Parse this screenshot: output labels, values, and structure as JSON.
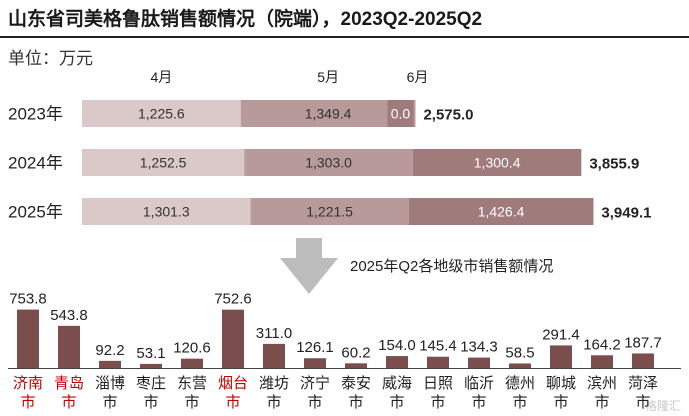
{
  "title": "山东省司美格鲁肽销售额情况（院端），2023Q2-2025Q2",
  "unit_label": "单位：万元",
  "watermark": "格隆汇",
  "colors": {
    "april": "#dbc9c9",
    "may": "#b89a9a",
    "june": "#a07b7b",
    "highlight": "#c00000",
    "dark_bar": "#7b4d4d"
  },
  "chart_data": [
    {
      "type": "bar",
      "orientation": "horizontal",
      "stacked": true,
      "categories": [
        "2023年",
        "2024年",
        "2025年"
      ],
      "series": [
        {
          "name": "4月",
          "values": [
            1225.6,
            1252.5,
            1301.3
          ]
        },
        {
          "name": "5月",
          "values": [
            1349.4,
            1303.0,
            1221.5
          ]
        },
        {
          "name": "6月",
          "values": [
            0.0,
            1300.4,
            1426.4
          ]
        }
      ],
      "value_labels": [
        [
          "1,225.6",
          "1,349.4",
          "0.0"
        ],
        [
          "1,252.5",
          "1,303.0",
          "1,300.4"
        ],
        [
          "1,301.3",
          "1,221.5",
          "1,426.4"
        ]
      ],
      "totals": [
        2575.0,
        3855.9,
        3949.1
      ],
      "total_labels": [
        "2,575.0",
        "3,855.9",
        "3,949.1"
      ],
      "legend_placement": "top"
    },
    {
      "type": "bar",
      "title": "2025年Q2各地级市销售额情况",
      "categories": [
        "济南市",
        "青岛市",
        "淄博市",
        "枣庄市",
        "东营市",
        "烟台市",
        "潍坊市",
        "济宁市",
        "泰安市",
        "威海市",
        "日照市",
        "临沂市",
        "德州市",
        "聊城市",
        "滨州市",
        "菏泽市"
      ],
      "labels_top": [
        "济南",
        "青岛",
        "淄博",
        "枣庄",
        "东营",
        "烟台",
        "潍坊",
        "济宁",
        "泰安",
        "威海",
        "日照",
        "临沂",
        "德州",
        "聊城",
        "滨州",
        "菏泽"
      ],
      "label_suffix": "市",
      "values": [
        753.8,
        543.8,
        92.2,
        53.1,
        120.6,
        752.6,
        311.0,
        126.1,
        60.2,
        154.0,
        145.4,
        134.3,
        58.5,
        291.4,
        164.2,
        187.7
      ],
      "value_labels": [
        "753.8",
        "543.8",
        "92.2",
        "53.1",
        "120.6",
        "752.6",
        "311.0",
        "126.1",
        "60.2",
        "154.0",
        "145.4",
        "134.3",
        "58.5",
        "291.4",
        "164.2",
        "187.7"
      ],
      "highlighted": [
        "济南市",
        "青岛市",
        "烟台市"
      ]
    }
  ]
}
